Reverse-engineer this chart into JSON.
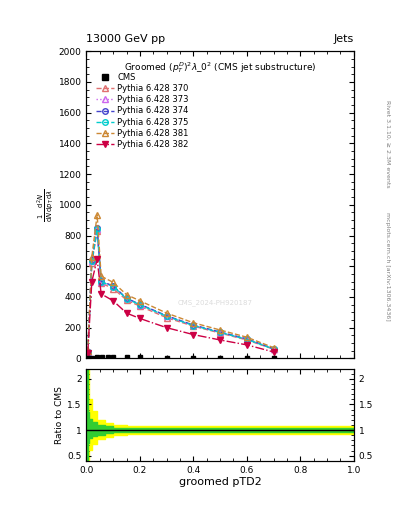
{
  "title_top": "13000 GeV pp",
  "title_right": "Jets",
  "xlabel": "groomed pTD2",
  "ylabel_ratio": "Ratio to CMS",
  "right_label_top": "Rivet 3.1.10, ≥ 2.3M events",
  "right_label_bot": "mcplots.cern.ch [arXiv:1306.3436]",
  "watermark": "CMS_2024-PH920187",
  "xlim": [
    0.0,
    1.0
  ],
  "ylim_main": [
    0,
    2000
  ],
  "ylim_ratio": [
    0.4,
    2.2
  ],
  "yticks_main": [
    0,
    200,
    400,
    600,
    800,
    1000,
    1200,
    1400,
    1600,
    1800,
    2000
  ],
  "yticks_ratio": [
    0.5,
    1.0,
    1.5,
    2.0
  ],
  "cms_x": [
    0.005,
    0.02,
    0.04,
    0.06,
    0.08,
    0.1,
    0.15,
    0.2,
    0.3,
    0.4,
    0.5,
    0.6,
    0.7
  ],
  "cms_y": [
    3,
    5,
    8,
    10,
    12,
    10,
    8,
    6,
    5,
    4,
    3,
    3,
    3
  ],
  "lines": [
    {
      "label": "Pythia 6.428 370",
      "color": "#e07070",
      "linestyle": "--",
      "marker": "^",
      "markerfacecolor": "none",
      "x": [
        0.005,
        0.02,
        0.04,
        0.055,
        0.1,
        0.15,
        0.2,
        0.3,
        0.4,
        0.5,
        0.6,
        0.7
      ],
      "y": [
        40,
        620,
        830,
        490,
        455,
        380,
        340,
        265,
        210,
        165,
        120,
        60
      ]
    },
    {
      "label": "Pythia 6.428 373",
      "color": "#cc66ee",
      "linestyle": ":",
      "marker": "^",
      "markerfacecolor": "none",
      "x": [
        0.005,
        0.02,
        0.04,
        0.055,
        0.1,
        0.15,
        0.2,
        0.3,
        0.4,
        0.5,
        0.6,
        0.7
      ],
      "y": [
        42,
        635,
        845,
        500,
        470,
        390,
        350,
        275,
        215,
        170,
        125,
        62
      ]
    },
    {
      "label": "Pythia 6.428 374",
      "color": "#4444cc",
      "linestyle": "--",
      "marker": "o",
      "markerfacecolor": "none",
      "x": [
        0.005,
        0.02,
        0.04,
        0.055,
        0.1,
        0.15,
        0.2,
        0.3,
        0.4,
        0.5,
        0.6,
        0.7
      ],
      "y": [
        42,
        638,
        848,
        502,
        472,
        392,
        352,
        278,
        217,
        172,
        127,
        63
      ]
    },
    {
      "label": "Pythia 6.428 375",
      "color": "#00cccc",
      "linestyle": "--",
      "marker": "o",
      "markerfacecolor": "none",
      "x": [
        0.005,
        0.02,
        0.04,
        0.055,
        0.1,
        0.15,
        0.2,
        0.3,
        0.4,
        0.5,
        0.6,
        0.7
      ],
      "y": [
        41,
        632,
        840,
        498,
        468,
        389,
        349,
        274,
        214,
        169,
        124,
        61
      ]
    },
    {
      "label": "Pythia 6.428 381",
      "color": "#cc8833",
      "linestyle": "--",
      "marker": "^",
      "markerfacecolor": "none",
      "x": [
        0.005,
        0.02,
        0.04,
        0.055,
        0.1,
        0.15,
        0.2,
        0.3,
        0.4,
        0.5,
        0.6,
        0.7
      ],
      "y": [
        45,
        660,
        935,
        535,
        495,
        415,
        375,
        295,
        232,
        185,
        138,
        70
      ]
    },
    {
      "label": "Pythia 6.428 382",
      "color": "#cc0044",
      "linestyle": "-.",
      "marker": "v",
      "markerfacecolor": "#cc0044",
      "x": [
        0.005,
        0.02,
        0.04,
        0.055,
        0.1,
        0.15,
        0.2,
        0.3,
        0.4,
        0.5,
        0.6,
        0.7
      ],
      "y": [
        38,
        500,
        645,
        420,
        375,
        295,
        260,
        200,
        155,
        120,
        88,
        42
      ]
    }
  ],
  "ratio_yellow_x": [
    0.0,
    0.005,
    0.01,
    0.02,
    0.04,
    0.07,
    0.1,
    0.15,
    1.0
  ],
  "ratio_yellow_lo": [
    0.4,
    0.4,
    0.62,
    0.72,
    0.82,
    0.87,
    0.9,
    0.93,
    0.95
  ],
  "ratio_yellow_hi": [
    2.2,
    2.2,
    1.6,
    1.38,
    1.2,
    1.13,
    1.1,
    1.08,
    1.05
  ],
  "ratio_green_x": [
    0.0,
    0.005,
    0.01,
    0.02,
    0.04,
    0.07,
    0.1,
    0.15,
    1.0
  ],
  "ratio_green_lo": [
    0.4,
    0.75,
    0.85,
    0.88,
    0.91,
    0.94,
    0.96,
    0.97,
    0.99
  ],
  "ratio_green_hi": [
    2.2,
    1.35,
    1.22,
    1.15,
    1.1,
    1.07,
    1.05,
    1.04,
    1.02
  ]
}
